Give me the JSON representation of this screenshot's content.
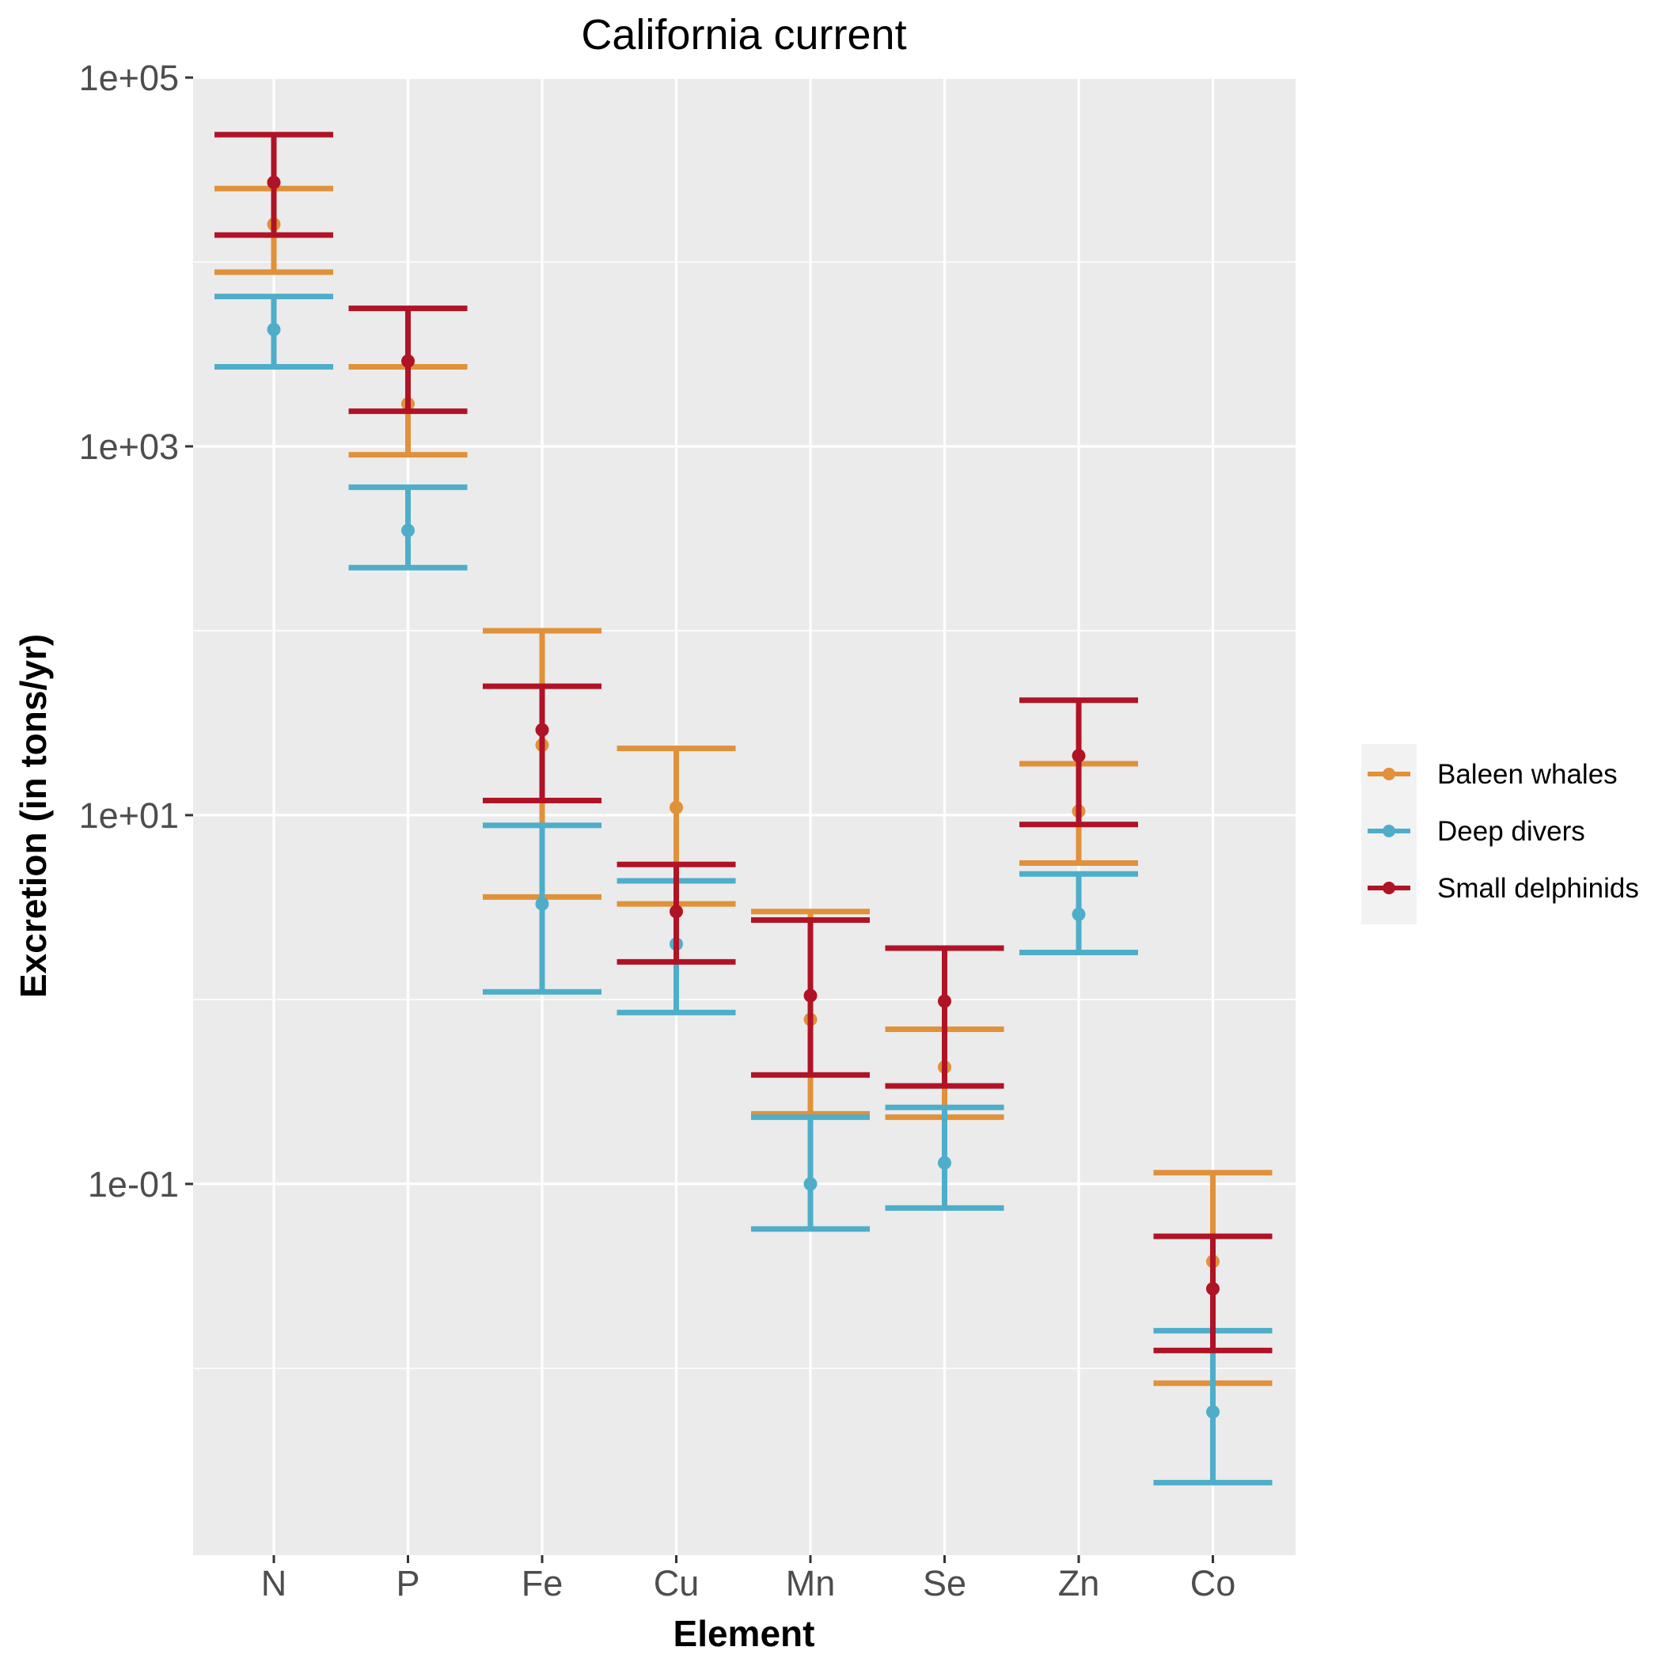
{
  "chart_data": {
    "type": "errorbar",
    "title": "California current",
    "xlabel": "Element",
    "ylabel": "Excretion (in tons/yr)",
    "y_scale": "log10",
    "ylim": [
      0.00097,
      100000
    ],
    "y_ticks": [
      {
        "value": 100000,
        "label": "1e+05"
      },
      {
        "value": 1000,
        "label": "1e+03"
      },
      {
        "value": 10,
        "label": "1e+01"
      },
      {
        "value": 0.1,
        "label": "1e-01"
      }
    ],
    "categories": [
      "N",
      "P",
      "Fe",
      "Cu",
      "Mn",
      "Se",
      "Zn",
      "Co"
    ],
    "grid": true,
    "legend_position": "right",
    "series": [
      {
        "name": "Baleen whales",
        "color": "#e0913a",
        "points": [
          {
            "category": "N",
            "y": 16000,
            "lo": 8800,
            "hi": 25000
          },
          {
            "category": "P",
            "y": 1700,
            "lo": 900,
            "hi": 2700
          },
          {
            "category": "Fe",
            "y": 24,
            "lo": 3.6,
            "hi": 100
          },
          {
            "category": "Cu",
            "y": 11,
            "lo": 3.3,
            "hi": 23
          },
          {
            "category": "Mn",
            "y": 0.78,
            "lo": 0.24,
            "hi": 3.0
          },
          {
            "category": "Se",
            "y": 0.43,
            "lo": 0.23,
            "hi": 0.69
          },
          {
            "category": "Zn",
            "y": 10.5,
            "lo": 5.5,
            "hi": 19
          },
          {
            "category": "Co",
            "y": 0.038,
            "lo": 0.0083,
            "hi": 0.115
          }
        ]
      },
      {
        "name": "Deep divers",
        "color": "#4eaec9",
        "points": [
          {
            "category": "N",
            "y": 4300,
            "lo": 2700,
            "hi": 6500
          },
          {
            "category": "P",
            "y": 350,
            "lo": 220,
            "hi": 600
          },
          {
            "category": "Fe",
            "y": 3.3,
            "lo": 1.1,
            "hi": 8.8
          },
          {
            "category": "Cu",
            "y": 2.0,
            "lo": 0.85,
            "hi": 4.4
          },
          {
            "category": "Mn",
            "y": 0.1,
            "lo": 0.057,
            "hi": 0.23
          },
          {
            "category": "Se",
            "y": 0.13,
            "lo": 0.074,
            "hi": 0.26
          },
          {
            "category": "Zn",
            "y": 2.9,
            "lo": 1.8,
            "hi": 4.8
          },
          {
            "category": "Co",
            "y": 0.0058,
            "lo": 0.0024,
            "hi": 0.016
          }
        ]
      },
      {
        "name": "Small delphinids",
        "color": "#b01326",
        "points": [
          {
            "category": "N",
            "y": 27000,
            "lo": 14000,
            "hi": 49000
          },
          {
            "category": "P",
            "y": 2900,
            "lo": 1550,
            "hi": 5600
          },
          {
            "category": "Fe",
            "y": 29,
            "lo": 12,
            "hi": 50
          },
          {
            "category": "Cu",
            "y": 3.0,
            "lo": 1.6,
            "hi": 5.4
          },
          {
            "category": "Mn",
            "y": 1.05,
            "lo": 0.39,
            "hi": 2.7
          },
          {
            "category": "Se",
            "y": 0.98,
            "lo": 0.34,
            "hi": 1.9
          },
          {
            "category": "Zn",
            "y": 21,
            "lo": 8.9,
            "hi": 42
          },
          {
            "category": "Co",
            "y": 0.027,
            "lo": 0.0125,
            "hi": 0.052
          }
        ]
      }
    ]
  }
}
